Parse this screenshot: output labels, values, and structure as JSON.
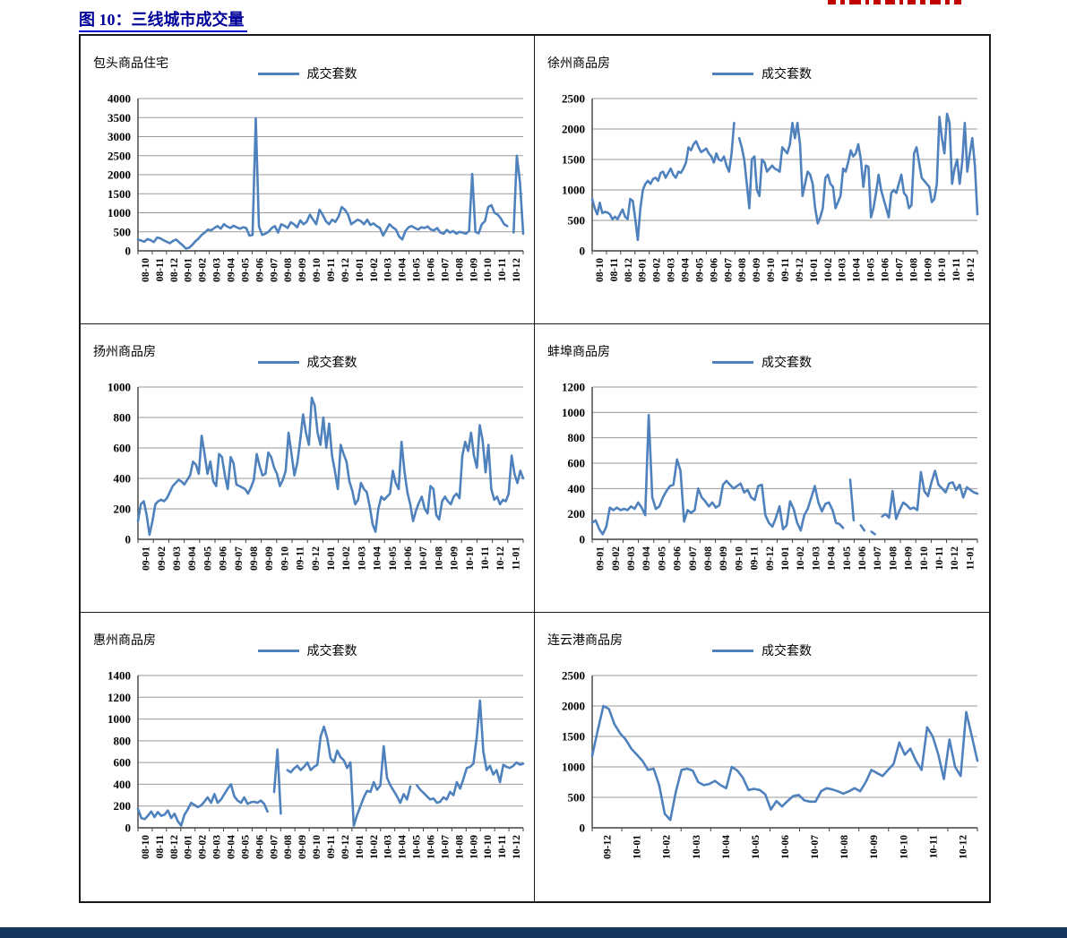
{
  "page": {
    "title": "图 10：三线城市成交量",
    "title_color": "#000099",
    "underline_color": "#0000cc",
    "footer_bar_color": "#17365D",
    "series_color": "#4F81BD"
  },
  "chart_data": [
    {
      "type": "line",
      "title": "包头商品住宅",
      "legend": "成交套数",
      "line_color": "#4F81BD",
      "ylim": [
        0,
        4000
      ],
      "yticks": [
        0,
        500,
        1000,
        1500,
        2000,
        2500,
        3000,
        3500,
        4000
      ],
      "x_labels": [
        "08-10",
        "08-11",
        "08-12",
        "09-01",
        "09-02",
        "09-03",
        "09-04",
        "09-05",
        "09-06",
        "09-07",
        "09-08",
        "09-09",
        "09-10",
        "09-11",
        "09-12",
        "10-01",
        "10-02",
        "10-03",
        "10-04",
        "10-05",
        "10-06",
        "10-07",
        "10-08",
        "10-09",
        "10-10",
        "10-11",
        "10-12"
      ],
      "values": [
        300,
        270,
        240,
        310,
        280,
        230,
        350,
        330,
        280,
        240,
        200,
        260,
        300,
        220,
        150,
        60,
        80,
        150,
        250,
        320,
        420,
        480,
        560,
        540,
        600,
        650,
        580,
        700,
        640,
        600,
        660,
        620,
        580,
        620,
        600,
        400,
        420,
        3480,
        650,
        420,
        450,
        500,
        600,
        650,
        480,
        700,
        660,
        600,
        750,
        700,
        620,
        800,
        700,
        760,
        950,
        820,
        700,
        1080,
        950,
        780,
        700,
        820,
        760,
        900,
        1150,
        1080,
        950,
        700,
        760,
        820,
        780,
        700,
        820,
        680,
        720,
        650,
        600,
        400,
        550,
        700,
        620,
        560,
        380,
        300,
        520,
        620,
        650,
        600,
        560,
        620,
        600,
        640,
        560,
        540,
        600,
        480,
        450,
        550,
        480,
        520,
        450,
        500,
        480,
        450,
        520,
        2020,
        500,
        460,
        700,
        780,
        1150,
        1200,
        1000,
        950,
        850,
        700,
        650,
        null,
        480,
        2500,
        1800,
        450
      ]
    },
    {
      "type": "line",
      "title": "徐州商品房",
      "legend": "成交套数",
      "line_color": "#4F81BD",
      "ylim": [
        0,
        2500
      ],
      "yticks": [
        0,
        500,
        1000,
        1500,
        2000,
        2500
      ],
      "x_labels": [
        "08-10",
        "08-11",
        "08-12",
        "09-01",
        "09-02",
        "09-03",
        "09-04",
        "09-05",
        "09-06",
        "09-07",
        "09-08",
        "09-09",
        "09-10",
        "09-11",
        "09-12",
        "10-01",
        "10-02",
        "10-03",
        "10-04",
        "10-05",
        "10-06",
        "10-07",
        "10-08",
        "10-09",
        "10-10",
        "10-11",
        "10-12"
      ],
      "values": [
        850,
        700,
        600,
        790,
        620,
        640,
        630,
        600,
        520,
        560,
        520,
        600,
        680,
        560,
        520,
        850,
        820,
        520,
        180,
        700,
        1000,
        1100,
        1150,
        1100,
        1180,
        1200,
        1150,
        1280,
        1300,
        1200,
        1280,
        1350,
        1250,
        1200,
        1300,
        1280,
        1350,
        1450,
        1700,
        1650,
        1750,
        1800,
        1700,
        1620,
        1650,
        1680,
        1600,
        1550,
        1450,
        1600,
        1500,
        1480,
        1550,
        1400,
        1300,
        1600,
        2100,
        null,
        1850,
        1700,
        1500,
        1100,
        700,
        1500,
        1550,
        1000,
        900,
        1500,
        1450,
        1300,
        1350,
        1400,
        1350,
        1330,
        1300,
        1700,
        1650,
        1600,
        1750,
        2100,
        1850,
        2100,
        1750,
        900,
        1100,
        1300,
        1250,
        1100,
        700,
        450,
        550,
        700,
        1200,
        1250,
        1100,
        1050,
        700,
        800,
        900,
        1350,
        1300,
        1450,
        1650,
        1550,
        1600,
        1750,
        1500,
        1050,
        1400,
        1380,
        550,
        700,
        950,
        1250,
        1000,
        850,
        700,
        550,
        950,
        1000,
        950,
        1100,
        1250,
        950,
        900,
        700,
        750,
        1600,
        1700,
        1450,
        1200,
        1150,
        1100,
        1050,
        800,
        850,
        1100,
        2200,
        1850,
        1600,
        2250,
        2100,
        1100,
        1350,
        1500,
        1100,
        1450,
        2100,
        1300,
        1600,
        1850,
        1400,
        600
      ]
    },
    {
      "type": "line",
      "title": "扬州商品房",
      "legend": "成交套数",
      "line_color": "#4F81BD",
      "ylim": [
        0,
        1000
      ],
      "yticks": [
        0,
        200,
        400,
        600,
        800,
        1000
      ],
      "x_labels": [
        "09-01",
        "09-02",
        "09-03",
        "09-04",
        "09-05",
        "09-06",
        "09-07",
        "09-08",
        "09-09",
        "09-10",
        "09-11",
        "09-12",
        "10-01",
        "10-02",
        "10-03",
        "10-04",
        "10-05",
        "10-06",
        "10-07",
        "10-08",
        "10-09",
        "10-10",
        "10-11",
        "10-12",
        "11-01"
      ],
      "values": [
        120,
        230,
        250,
        160,
        30,
        120,
        230,
        250,
        260,
        250,
        270,
        310,
        350,
        370,
        390,
        380,
        360,
        390,
        420,
        510,
        490,
        430,
        680,
        560,
        430,
        510,
        380,
        350,
        560,
        540,
        420,
        330,
        540,
        500,
        360,
        350,
        340,
        330,
        300,
        340,
        390,
        560,
        480,
        420,
        430,
        570,
        540,
        470,
        430,
        350,
        390,
        450,
        700,
        560,
        420,
        500,
        650,
        820,
        700,
        620,
        930,
        880,
        700,
        620,
        800,
        600,
        760,
        550,
        450,
        330,
        620,
        560,
        510,
        380,
        320,
        230,
        260,
        370,
        330,
        310,
        220,
        100,
        50,
        200,
        280,
        260,
        280,
        300,
        450,
        370,
        330,
        640,
        450,
        310,
        230,
        120,
        190,
        240,
        280,
        200,
        170,
        350,
        330,
        160,
        130,
        250,
        280,
        250,
        230,
        280,
        300,
        270,
        550,
        640,
        580,
        700,
        550,
        470,
        750,
        650,
        440,
        620,
        330,
        260,
        280,
        230,
        260,
        250,
        300,
        550,
        430,
        370,
        450,
        400
      ]
    },
    {
      "type": "line",
      "title": "蚌埠商品房",
      "legend": "成交套数",
      "line_color": "#4F81BD",
      "ylim": [
        0,
        1200
      ],
      "yticks": [
        0,
        200,
        400,
        600,
        800,
        1000,
        1200
      ],
      "x_labels": [
        "09-01",
        "09-02",
        "09-03",
        "09-04",
        "09-05",
        "09-06",
        "09-07",
        "09-08",
        "09-09",
        "09-10",
        "09-11",
        "09-12",
        "10-01",
        "10-02",
        "10-03",
        "10-04",
        "10-05",
        "10-06",
        "10-07",
        "10-08",
        "10-09",
        "10-10",
        "10-11",
        "10-12",
        "11-01"
      ],
      "values": [
        130,
        150,
        80,
        40,
        100,
        250,
        230,
        250,
        230,
        240,
        230,
        260,
        240,
        290,
        250,
        190,
        980,
        330,
        240,
        260,
        330,
        380,
        420,
        430,
        630,
        540,
        140,
        230,
        210,
        230,
        400,
        330,
        300,
        260,
        290,
        250,
        270,
        430,
        460,
        430,
        400,
        420,
        440,
        370,
        390,
        330,
        310,
        420,
        430,
        190,
        130,
        100,
        170,
        260,
        80,
        110,
        300,
        240,
        130,
        70,
        190,
        240,
        330,
        420,
        290,
        220,
        280,
        290,
        230,
        130,
        120,
        90,
        null,
        470,
        150,
        null,
        110,
        70,
        null,
        60,
        40,
        null,
        180,
        200,
        170,
        380,
        160,
        230,
        290,
        270,
        240,
        250,
        230,
        530,
        380,
        340,
        450,
        540,
        430,
        400,
        370,
        440,
        450,
        390,
        430,
        330,
        410,
        390,
        370,
        360
      ]
    },
    {
      "type": "line",
      "title": "惠州商品房",
      "legend": "成交套数",
      "line_color": "#4F81BD",
      "ylim": [
        0,
        1400
      ],
      "yticks": [
        0,
        200,
        400,
        600,
        800,
        1000,
        1200,
        1400
      ],
      "x_labels": [
        "08-10",
        "08-11",
        "08-12",
        "09-01",
        "09-02",
        "09-03",
        "09-04",
        "09-05",
        "09-06",
        "09-07",
        "09-08",
        "09-09",
        "09-10",
        "09-11",
        "09-12",
        "10-01",
        "10-02",
        "10-03",
        "10-04",
        "10-05",
        "10-06",
        "10-07",
        "10-08",
        "10-09",
        "10-10",
        "10-11",
        "10-12"
      ],
      "values": [
        175,
        90,
        80,
        110,
        150,
        100,
        145,
        110,
        120,
        160,
        90,
        130,
        60,
        20,
        120,
        170,
        230,
        210,
        190,
        205,
        240,
        280,
        230,
        310,
        230,
        260,
        310,
        360,
        400,
        290,
        250,
        230,
        280,
        220,
        235,
        240,
        230,
        250,
        220,
        150,
        null,
        330,
        720,
        130,
        null,
        530,
        510,
        545,
        570,
        530,
        560,
        600,
        530,
        560,
        580,
        840,
        930,
        820,
        640,
        600,
        710,
        650,
        620,
        550,
        600,
        20,
        120,
        200,
        280,
        340,
        330,
        420,
        350,
        390,
        750,
        460,
        390,
        340,
        290,
        230,
        310,
        260,
        380,
        null,
        390,
        350,
        320,
        290,
        260,
        270,
        230,
        240,
        280,
        260,
        330,
        300,
        420,
        360,
        450,
        550,
        560,
        590,
        830,
        1170,
        700,
        530,
        570,
        490,
        530,
        420,
        580,
        560,
        550,
        570,
        600,
        580,
        590
      ]
    },
    {
      "type": "line",
      "title": "连云港商品房",
      "legend": "成交套数",
      "line_color": "#4F81BD",
      "ylim": [
        0,
        2500
      ],
      "yticks": [
        0,
        500,
        1000,
        1500,
        2000,
        2500
      ],
      "x_labels": [
        "09-12",
        "10-01",
        "10-02",
        "10-03",
        "10-04",
        "10-05",
        "10-06",
        "10-07",
        "10-08",
        "10-09",
        "10-10",
        "10-11",
        "10-12"
      ],
      "values": [
        1180,
        1600,
        2000,
        1950,
        1700,
        1550,
        1450,
        1300,
        1200,
        1100,
        950,
        970,
        700,
        230,
        130,
        600,
        950,
        970,
        940,
        750,
        700,
        720,
        770,
        700,
        650,
        1000,
        940,
        820,
        620,
        640,
        620,
        550,
        300,
        440,
        350,
        440,
        520,
        540,
        450,
        430,
        430,
        600,
        650,
        630,
        600,
        560,
        600,
        650,
        600,
        750,
        950,
        900,
        850,
        950,
        1050,
        1400,
        1200,
        1300,
        1100,
        950,
        1650,
        1500,
        1200,
        800,
        1450,
        1000,
        850,
        1900,
        1500,
        1100
      ]
    }
  ]
}
